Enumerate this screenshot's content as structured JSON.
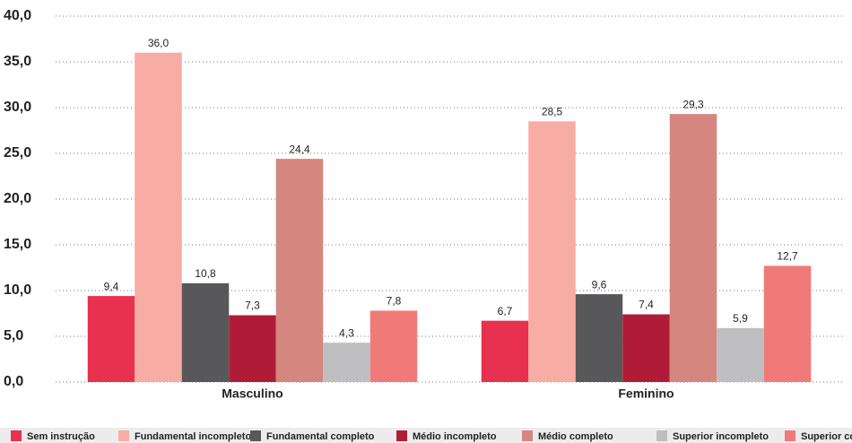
{
  "chart_data": {
    "type": "bar",
    "categories": [
      "Masculino",
      "Feminino"
    ],
    "series": [
      {
        "name": "Sem instrução",
        "color": "#e8304f",
        "values": [
          9.4,
          6.7
        ],
        "value_labels": [
          "9,4",
          "6,7"
        ]
      },
      {
        "name": "Fundamental incompleto",
        "color": "#f7aca4",
        "values": [
          36.0,
          28.5
        ],
        "value_labels": [
          "36,0",
          "28,5"
        ]
      },
      {
        "name": "Fundamental completo",
        "color": "#58585a",
        "values": [
          10.8,
          9.6
        ],
        "value_labels": [
          "10,8",
          "9,6"
        ]
      },
      {
        "name": "Médio incompleto",
        "color": "#b01c37",
        "values": [
          7.3,
          7.4
        ],
        "value_labels": [
          "7,3",
          "7,4"
        ]
      },
      {
        "name": "Médio completo",
        "color": "#d4867f",
        "values": [
          24.4,
          29.3
        ],
        "value_labels": [
          "24,4",
          "29,3"
        ]
      },
      {
        "name": "Superior incompleto",
        "color": "#bfbfc1",
        "values": [
          4.3,
          5.9
        ],
        "value_labels": [
          "4,3",
          "5,9"
        ]
      },
      {
        "name": "Superior completo",
        "color": "#f07a78",
        "values": [
          7.8,
          12.7
        ],
        "value_labels": [
          "7,8",
          "12,7"
        ]
      }
    ],
    "ylim": [
      0,
      40
    ],
    "yticks": [
      {
        "value": 0,
        "label": "0,0"
      },
      {
        "value": 5,
        "label": "5,0"
      },
      {
        "value": 10,
        "label": "10,0"
      },
      {
        "value": 15,
        "label": "15,0"
      },
      {
        "value": 20,
        "label": "20,0"
      },
      {
        "value": 25,
        "label": "25,0"
      },
      {
        "value": 30,
        "label": "30,0"
      },
      {
        "value": 35,
        "label": "35,0"
      },
      {
        "value": 40,
        "label": "40,0"
      }
    ],
    "grid": true,
    "legend": "bottom"
  }
}
